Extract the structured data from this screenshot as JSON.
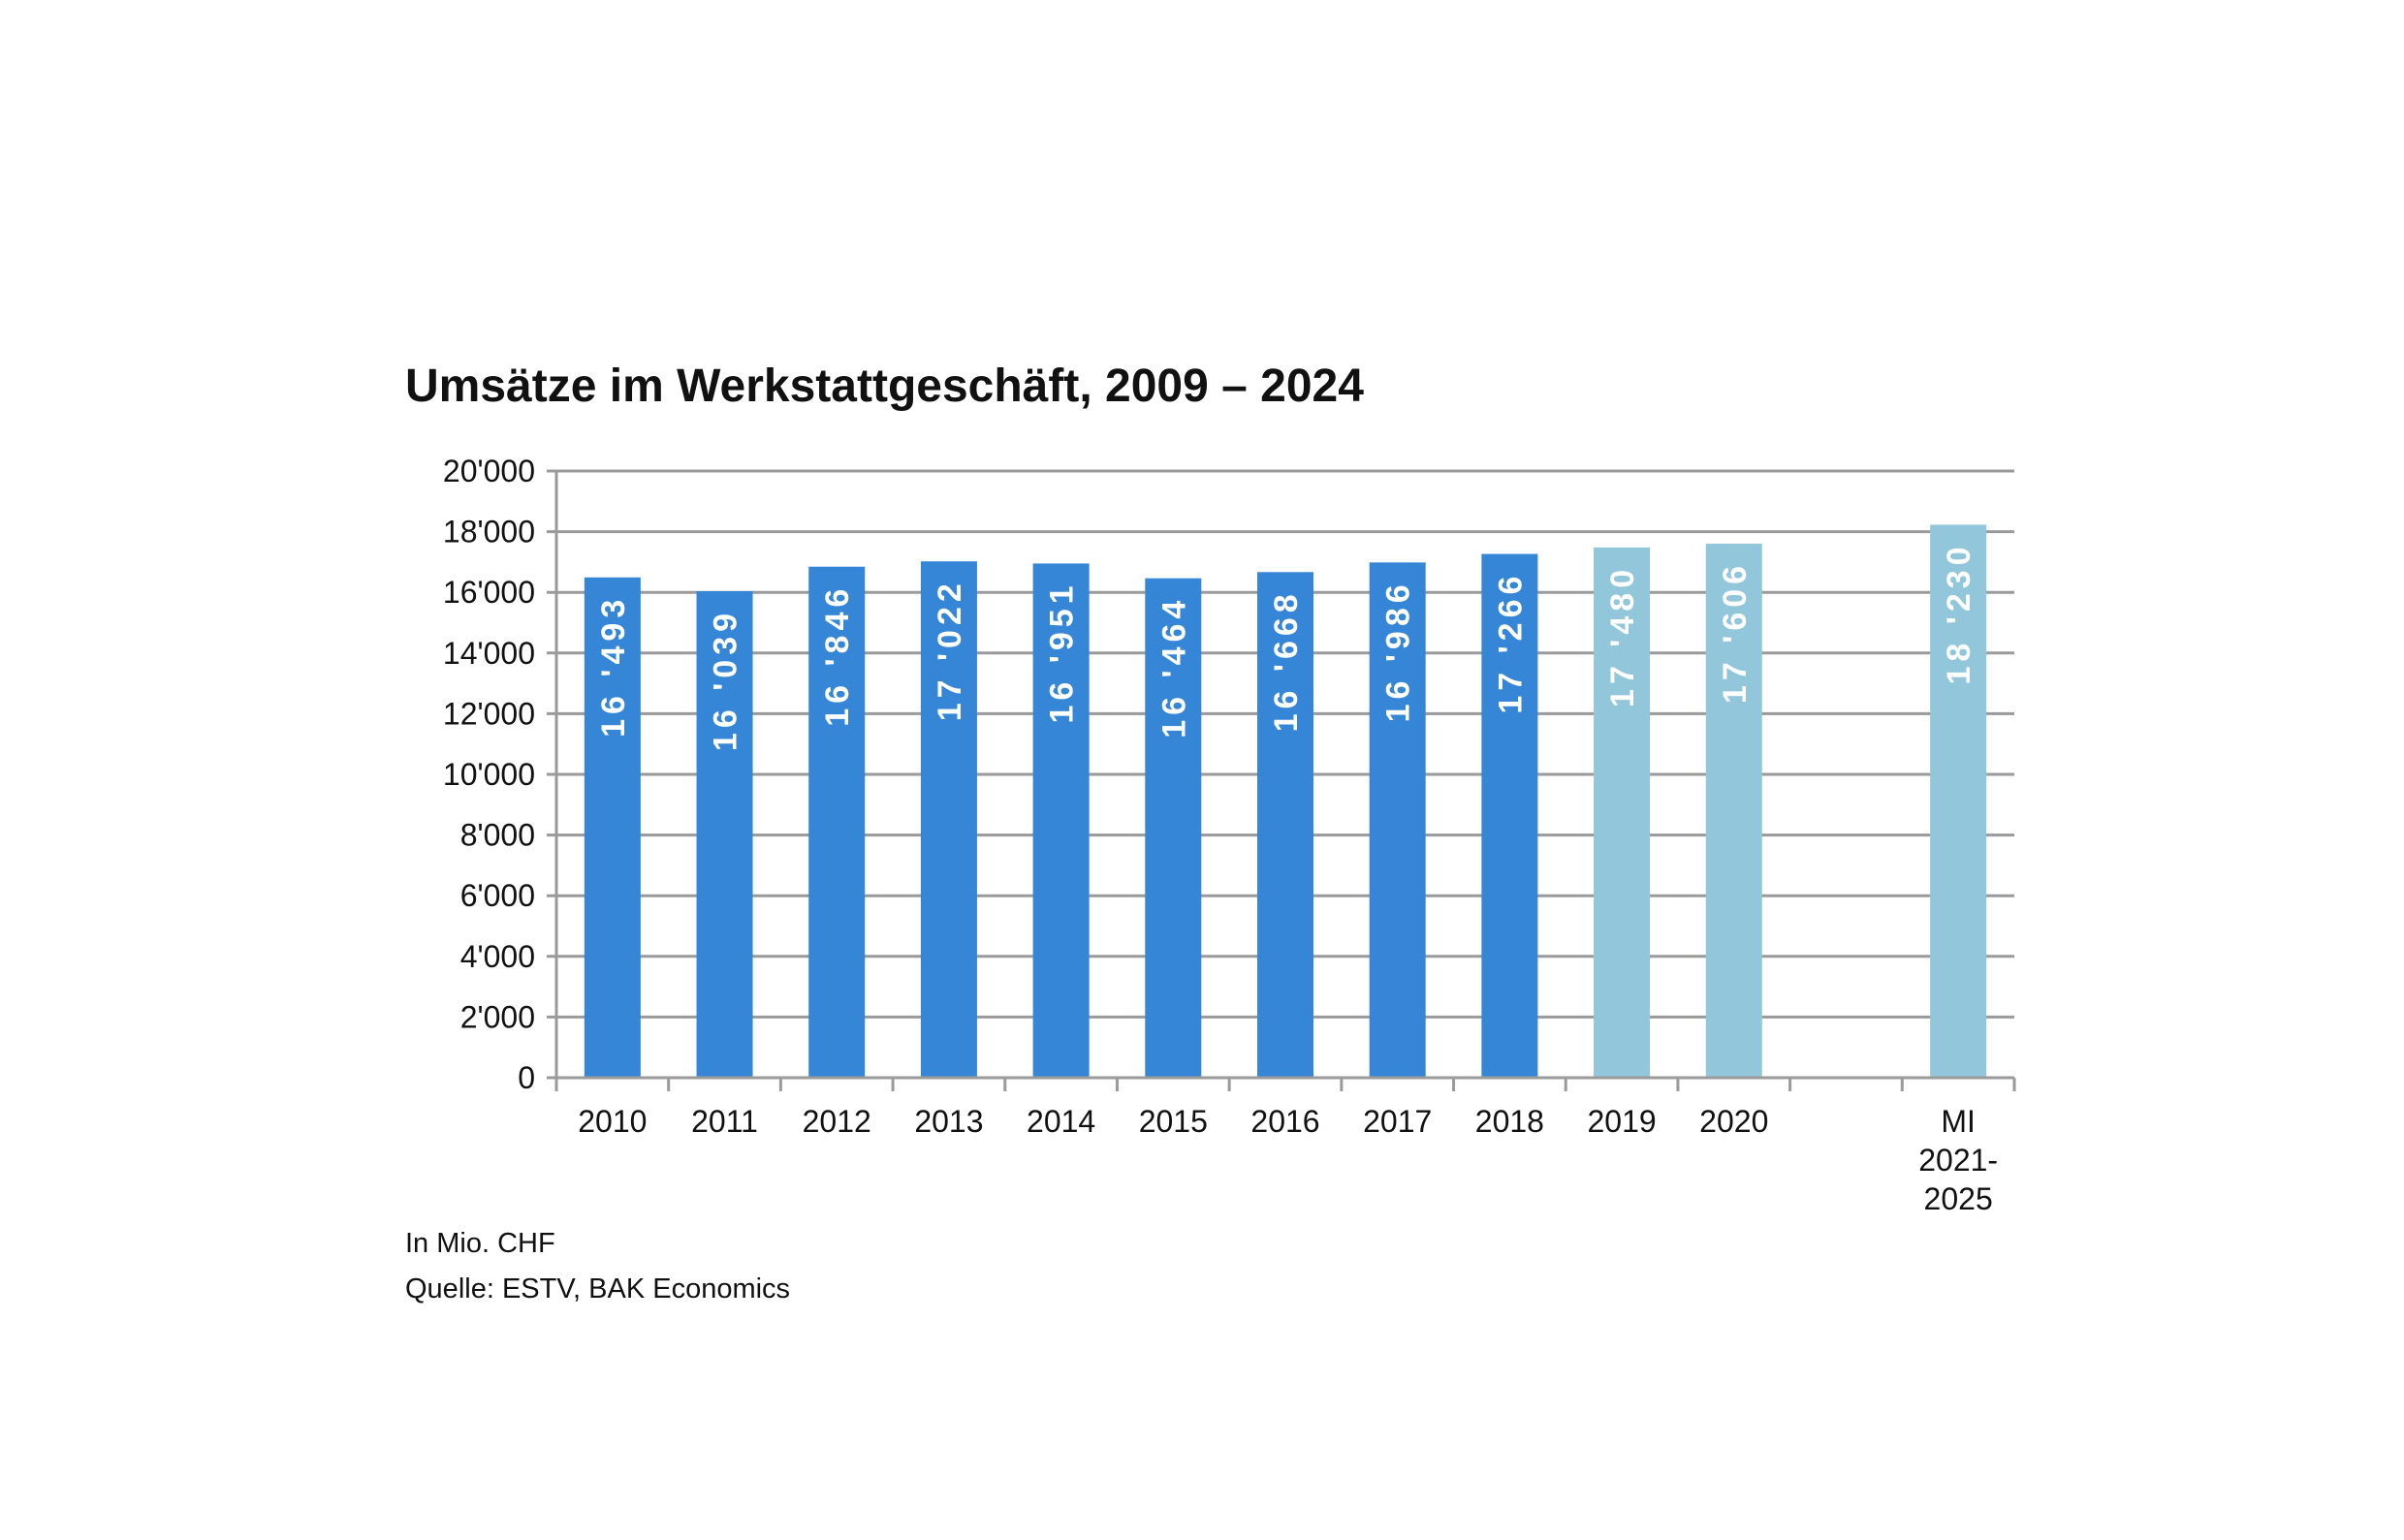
{
  "chart_data": {
    "type": "bar",
    "title": "Umsätze im Werkstattgeschäft, 2009 – 2024",
    "categories": [
      "2010",
      "2011",
      "2012",
      "2013",
      "2014",
      "2015",
      "2016",
      "2017",
      "2018",
      "2019",
      "2020",
      "",
      "MI\n2021-\n2025"
    ],
    "values": [
      16493,
      16039,
      16846,
      17022,
      16951,
      16464,
      16668,
      16986,
      17266,
      17480,
      17606,
      null,
      18230
    ],
    "value_labels": [
      "16 '493",
      "16 '039",
      "16 '846",
      "17 '022",
      "16 '951",
      "16 '464",
      "16 '668",
      "16 '986",
      "17 '266",
      "17 '480",
      "17 '606",
      "",
      "18 '230"
    ],
    "bar_kinds": [
      "actual",
      "actual",
      "actual",
      "actual",
      "actual",
      "actual",
      "actual",
      "actual",
      "actual",
      "estimate",
      "estimate",
      "none",
      "estimate"
    ],
    "colors": {
      "actual": "#3586D6",
      "estimate": "#92C7DB",
      "grid": "#9a9a9a",
      "axis": "#9a9a9a"
    },
    "ylim": [
      0,
      20000
    ],
    "yticks": [
      "0",
      "2'000",
      "4'000",
      "6'000",
      "8'000",
      "10'000",
      "12'000",
      "14'000",
      "16'000",
      "18'000",
      "20'000"
    ],
    "grid": true,
    "notes": [
      "In Mio. CHF",
      "Quelle: ESTV, BAK Economics"
    ]
  }
}
